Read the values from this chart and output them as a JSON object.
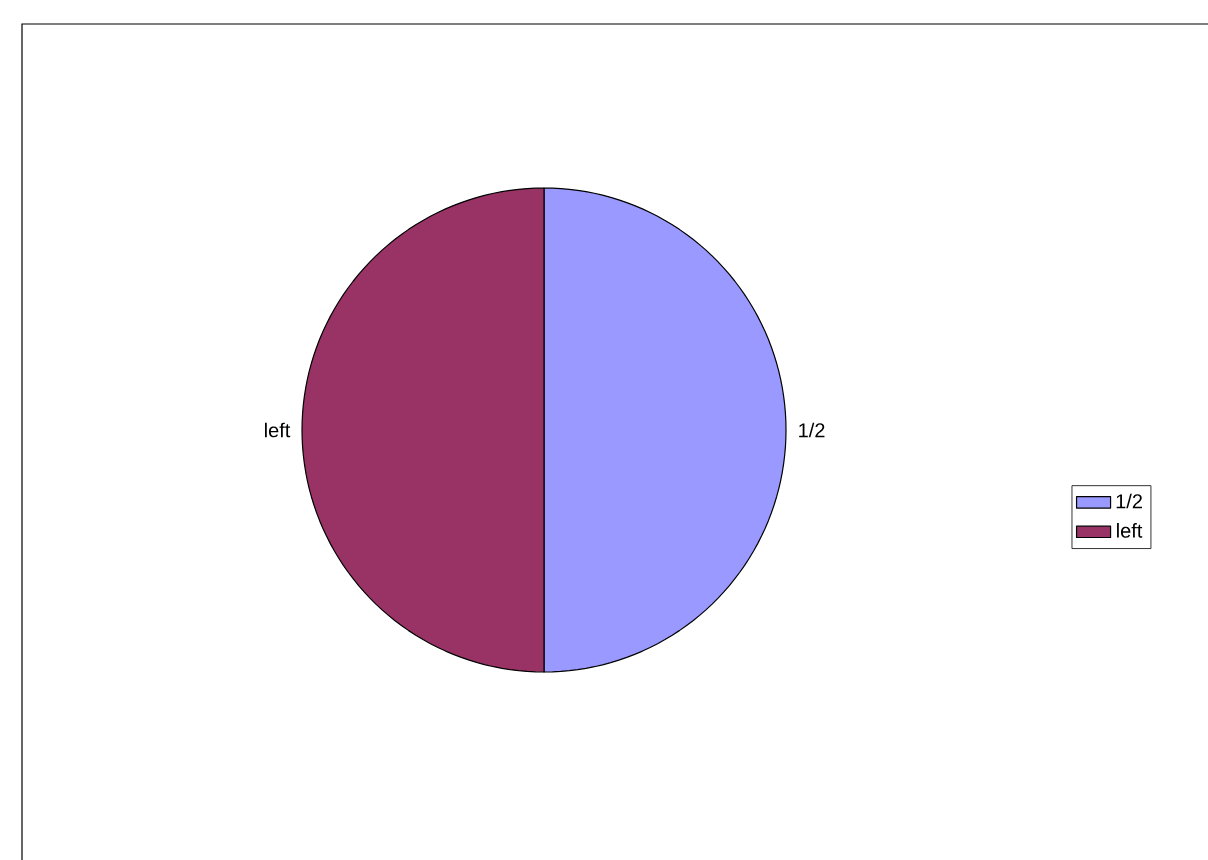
{
  "chart_data": {
    "type": "pie",
    "categories": [
      "1/2",
      "left"
    ],
    "values": [
      50,
      50
    ],
    "colors": [
      "#9999ff",
      "#993366"
    ],
    "legend": "right"
  }
}
